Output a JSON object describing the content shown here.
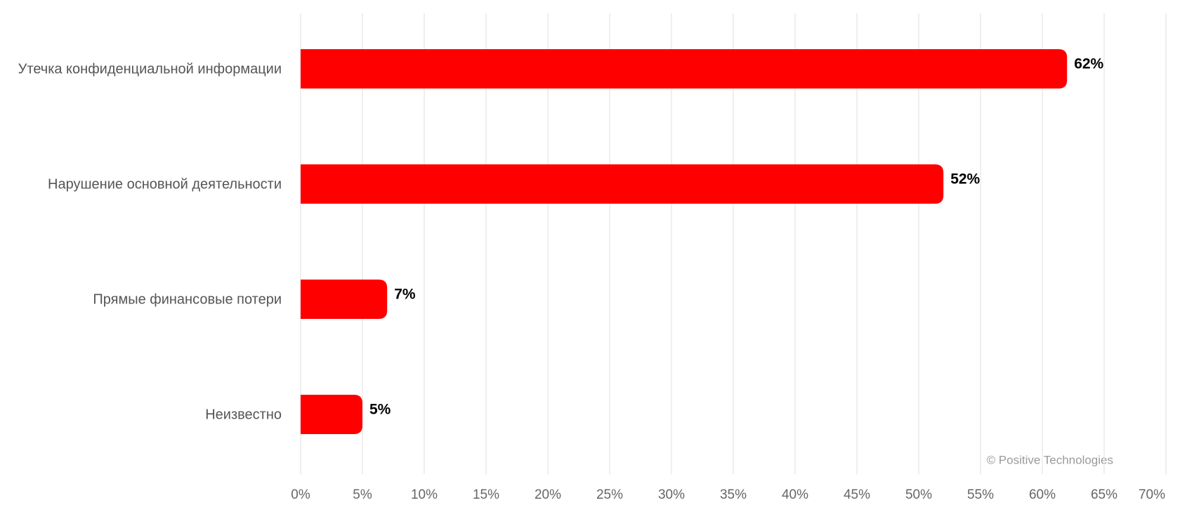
{
  "chart_data": {
    "type": "bar",
    "orientation": "horizontal",
    "categories": [
      "Утечка конфиденциальной информации",
      "Нарушение основной деятельности",
      "Прямые финансовые потери",
      "Неизвестно"
    ],
    "values": [
      62,
      52,
      7,
      5
    ],
    "value_labels": [
      "62%",
      "52%",
      "7%",
      "5%"
    ],
    "color": "#ff0000",
    "xlim": [
      0,
      70
    ],
    "xticks": [
      {
        "value": 0,
        "label": "0%"
      },
      {
        "value": 5,
        "label": "5%"
      },
      {
        "value": 10,
        "label": "10%"
      },
      {
        "value": 15,
        "label": "15%"
      },
      {
        "value": 20,
        "label": "20%"
      },
      {
        "value": 25,
        "label": "25%"
      },
      {
        "value": 30,
        "label": "30%"
      },
      {
        "value": 35,
        "label": "35%"
      },
      {
        "value": 40,
        "label": "40%"
      },
      {
        "value": 45,
        "label": "45%"
      },
      {
        "value": 50,
        "label": "50%"
      },
      {
        "value": 55,
        "label": "55%"
      },
      {
        "value": 60,
        "label": "60%"
      },
      {
        "value": 65,
        "label": "65%"
      },
      {
        "value": 70,
        "label": "70%"
      }
    ],
    "grid": true,
    "watermark": "© Positive Technologies"
  }
}
